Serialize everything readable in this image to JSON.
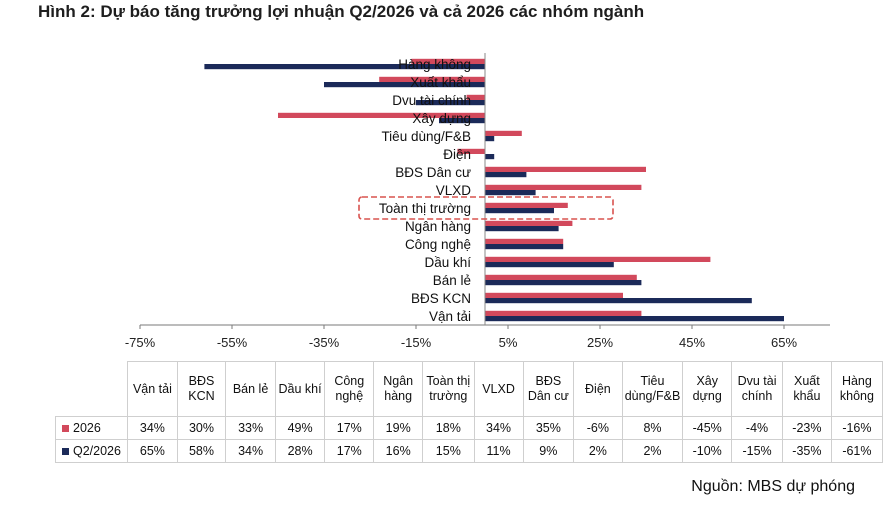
{
  "title": {
    "lead": "Hình 2:",
    "rest": " Dự báo tăng trưởng lợi nhuận Q2/2026 và cả 2026 các nhóm ngành"
  },
  "source": "Nguồn: MBS dự phóng",
  "colors": {
    "s2026": "#d2495c",
    "q2": "#1b2a59",
    "highlight": "#d9534f"
  },
  "chart_data": {
    "type": "bar",
    "orientation": "horizontal",
    "categories": [
      "Hàng không",
      "Xuất khẩu",
      "Dvu tài chính",
      "Xây dựng",
      "Tiêu dùng/F&B",
      "Điện",
      "BĐS Dân cư",
      "VLXD",
      "Toàn thị trường",
      "Ngân hàng",
      "Công nghệ",
      "Dầu khí",
      "Bán lẻ",
      "BĐS KCN",
      "Vận tải"
    ],
    "series": [
      {
        "name": "2026",
        "values": [
          -16,
          -23,
          -4,
          -45,
          8,
          -6,
          35,
          34,
          18,
          19,
          17,
          49,
          33,
          30,
          34
        ]
      },
      {
        "name": "Q2/2026",
        "values": [
          -61,
          -35,
          -15,
          -10,
          2,
          2,
          9,
          11,
          15,
          16,
          17,
          28,
          34,
          58,
          65
        ]
      }
    ],
    "xlim": [
      -75,
      75
    ],
    "xticks": [
      "-75%",
      "-55%",
      "-35%",
      "-15%",
      "5%",
      "25%",
      "45%",
      "65%"
    ],
    "highlighted_category": "Toàn thị trường",
    "table": {
      "headers": [
        "Vận tải",
        "BĐS KCN",
        "Bán lẻ",
        "Dầu khí",
        "Công nghệ",
        "Ngân hàng",
        "Toàn thị trường",
        "VLXD",
        "BĐS Dân cư",
        "Điện",
        "Tiêu dùng/F&B",
        "Xây dựng",
        "Dvu tài chính",
        "Xuất khẩu",
        "Hàng không"
      ],
      "rows": [
        {
          "label": "2026",
          "values": [
            "34%",
            "30%",
            "33%",
            "49%",
            "17%",
            "19%",
            "18%",
            "34%",
            "35%",
            "-6%",
            "8%",
            "-45%",
            "-4%",
            "-23%",
            "-16%"
          ]
        },
        {
          "label": "Q2/2026",
          "values": [
            "65%",
            "58%",
            "34%",
            "28%",
            "17%",
            "16%",
            "15%",
            "11%",
            "9%",
            "2%",
            "2%",
            "-10%",
            "-15%",
            "-35%",
            "-61%"
          ]
        }
      ]
    }
  }
}
